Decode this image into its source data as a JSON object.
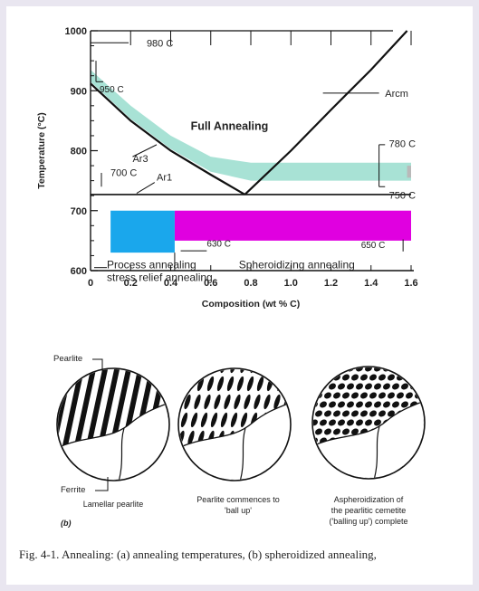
{
  "chart_data": {
    "type": "area",
    "xlabel": "Composition (wt % C)",
    "ylabel": "Temperature (°C)",
    "xlim": [
      0,
      1.6
    ],
    "ylim": [
      600,
      1000
    ],
    "x_ticks": [
      "0",
      "0.2",
      "0.4",
      "0.6",
      "0.8",
      "1.0",
      "1.2",
      "1.4",
      "1.6"
    ],
    "y_ticks": [
      "600",
      "700",
      "800",
      "900",
      "1000"
    ],
    "grid": false,
    "lines": [
      {
        "label": "Ar3",
        "points": [
          [
            0,
            912
          ],
          [
            0.2,
            850
          ],
          [
            0.4,
            800
          ],
          [
            0.6,
            760
          ],
          [
            0.77,
            727
          ]
        ]
      },
      {
        "label": "Arcm",
        "points": [
          [
            0.77,
            727
          ],
          [
            1.0,
            800
          ],
          [
            1.2,
            868
          ],
          [
            1.4,
            935
          ],
          [
            1.58,
            1000
          ]
        ]
      },
      {
        "label": "Ar1",
        "points": [
          [
            0,
            727
          ],
          [
            1.6,
            727
          ]
        ]
      }
    ],
    "bands": [
      {
        "name": "Full Annealing",
        "color": "#9fdfd0",
        "upper": [
          [
            0,
            935
          ],
          [
            0.2,
            875
          ],
          [
            0.4,
            825
          ],
          [
            0.6,
            790
          ],
          [
            0.8,
            780
          ],
          [
            1.6,
            780
          ]
        ],
        "lower": [
          [
            0,
            915
          ],
          [
            0.2,
            853
          ],
          [
            0.4,
            803
          ],
          [
            0.6,
            765
          ],
          [
            0.8,
            750
          ],
          [
            1.6,
            750
          ]
        ]
      },
      {
        "name": "Process annealing",
        "color": "#1aa7ec",
        "x": [
          0.1,
          0.42
        ],
        "y": [
          630,
          700
        ]
      },
      {
        "name": "Spheroidizing annealing",
        "color": "#e000e0",
        "x": [
          0.42,
          1.6
        ],
        "y": [
          650,
          700
        ]
      }
    ],
    "annotations": {
      "t980": "980 C",
      "t950": "950 C",
      "t700": "700 C",
      "full_annealing": "Full Annealing",
      "ar3": "Ar3",
      "ar1": "Ar1",
      "arcm": "Arcm",
      "t780": "780 C",
      "t750": "750 C",
      "t630": "630 C",
      "t650": "650 C",
      "process": "Process annealing",
      "stress": "stress relief annealing",
      "spheroidizing": "Spheroidizing annealing"
    }
  },
  "micrographs": {
    "pearlite_label": "Pearlite",
    "ferrite_label": "Ferrite",
    "part_label": "(b)",
    "captions": [
      [
        "Lamellar pearlite"
      ],
      [
        "Pearlite commences to",
        "'ball up'"
      ],
      [
        "Aspheroidization of",
        "the pearlitic cemetite",
        "('balling up') complete"
      ]
    ]
  },
  "figure_caption": "Fig. 4-1. Annealing: (a) annealing temperatures, (b) spheroidized annealing,",
  "colors": {
    "full": "#9fdfd0",
    "process": "#1aa7ec",
    "spheroid": "#e000e0",
    "line": "#111111"
  }
}
